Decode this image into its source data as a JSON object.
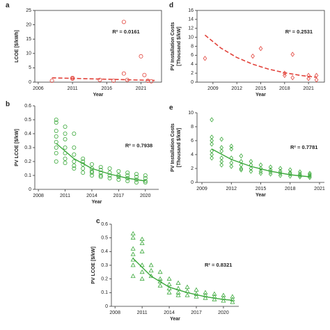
{
  "chart_data": [
    {
      "type": "scatter",
      "panel": "a",
      "ylabel": [
        "LCOE [$/kWh]"
      ],
      "xlabel": "Year",
      "annotation": "R² = 0.0161",
      "marker": "circle",
      "color": "#e2433b",
      "frame": true,
      "xlim": [
        2005.5,
        2024
      ],
      "xticks": [
        2006,
        2011,
        2016,
        2021
      ],
      "ylim": [
        0,
        25
      ],
      "yticks": [
        0,
        5,
        10,
        15,
        20,
        25
      ],
      "series": [
        {
          "x": [
            2008,
            2011,
            2011,
            2015,
            2017,
            2018.5,
            2018.5,
            2019,
            2021,
            2021.5,
            2022,
            2022.5
          ],
          "values": [
            0.5,
            1.5,
            1.2,
            0.8,
            0.5,
            21,
            3,
            0.8,
            9,
            2.5,
            0.5,
            0.3
          ]
        }
      ],
      "trend": {
        "x": [
          2008,
          2013,
          2018,
          2023
        ],
        "values": [
          1.5,
          1.2,
          0.9,
          0.6
        ],
        "dashed": true
      }
    },
    {
      "type": "scatter",
      "panel": "d",
      "ylabel": [
        "PV Installation Costs",
        "[Thousand $/kW]"
      ],
      "xlabel": "Year",
      "annotation": "R² = 0.2531",
      "marker": "diamond",
      "color": "#e2433b",
      "frame": true,
      "xlim": [
        2007,
        2023
      ],
      "xticks": [
        2009,
        2012,
        2015,
        2018,
        2021
      ],
      "ylim": [
        0,
        16
      ],
      "yticks": [
        0,
        2,
        4,
        6,
        8,
        10,
        12,
        14,
        16
      ],
      "series": [
        {
          "x": [
            2008,
            2014,
            2015,
            2018,
            2018,
            2019,
            2019,
            2021,
            2021,
            2022,
            2022
          ],
          "values": [
            5.3,
            5.8,
            7.5,
            2,
            1.5,
            6.2,
            1,
            1.5,
            0.8,
            1.5,
            0.5
          ]
        }
      ],
      "trend": {
        "x": [
          2008,
          2010,
          2012,
          2014,
          2016,
          2018,
          2020,
          2022
        ],
        "values": [
          10.5,
          7.6,
          5.5,
          4.0,
          2.9,
          2.1,
          1.5,
          1.1
        ],
        "dashed": true
      }
    },
    {
      "type": "scatter",
      "panel": "b",
      "ylabel": [
        "PV LCOE [$/kW]"
      ],
      "xlabel": "Year",
      "annotation": "R² = 0.7938",
      "marker": "circle",
      "color": "#3aa83a",
      "frame": false,
      "xlim": [
        2007.6,
        2021.5
      ],
      "xticks": [
        2008,
        2011,
        2014,
        2017,
        2020
      ],
      "ylim": [
        0,
        0.6
      ],
      "yticks": [
        0,
        0.1,
        0.2,
        0.3,
        0.4,
        0.5,
        0.6
      ],
      "series": [
        {
          "x": [
            2010,
            2010,
            2010,
            2010,
            2010,
            2010,
            2010,
            2010,
            2011,
            2011,
            2011,
            2011,
            2011,
            2011,
            2011,
            2012,
            2012,
            2012,
            2012,
            2012,
            2012,
            2013,
            2013,
            2013,
            2013,
            2013,
            2014,
            2014,
            2014,
            2014,
            2014,
            2015,
            2015,
            2015,
            2015,
            2015,
            2016,
            2016,
            2016,
            2016,
            2017,
            2017,
            2017,
            2017,
            2018,
            2018,
            2018,
            2018,
            2019,
            2019,
            2019,
            2019,
            2020,
            2020,
            2020,
            2020
          ],
          "values": [
            0.5,
            0.48,
            0.42,
            0.38,
            0.34,
            0.3,
            0.26,
            0.2,
            0.45,
            0.4,
            0.36,
            0.3,
            0.26,
            0.22,
            0.19,
            0.4,
            0.3,
            0.25,
            0.2,
            0.17,
            0.15,
            0.22,
            0.2,
            0.18,
            0.15,
            0.12,
            0.18,
            0.15,
            0.13,
            0.12,
            0.1,
            0.16,
            0.14,
            0.12,
            0.1,
            0.09,
            0.15,
            0.12,
            0.1,
            0.08,
            0.13,
            0.1,
            0.09,
            0.07,
            0.12,
            0.1,
            0.08,
            0.06,
            0.11,
            0.09,
            0.07,
            0.05,
            0.1,
            0.08,
            0.06,
            0.05
          ]
        }
      ],
      "trend": {
        "x": [
          2010,
          2012,
          2014,
          2016,
          2018,
          2020
        ],
        "values": [
          0.33,
          0.22,
          0.15,
          0.11,
          0.08,
          0.06
        ],
        "dashed": false
      }
    },
    {
      "type": "scatter",
      "panel": "e",
      "ylabel": [
        "PV Installation Costs",
        "[Thousand $/kW]"
      ],
      "xlabel": "Year",
      "annotation": "R² = 0.7781",
      "marker": "diamond",
      "color": "#3aa83a",
      "frame": false,
      "xlim": [
        2008.5,
        2021.5
      ],
      "xticks": [
        2009,
        2012,
        2015,
        2018,
        2021
      ],
      "ylim": [
        0,
        10
      ],
      "yticks": [
        0,
        2,
        4,
        6,
        8,
        10
      ],
      "series": [
        {
          "x": [
            2010,
            2010,
            2010,
            2010,
            2010,
            2010,
            2010,
            2011,
            2011,
            2011,
            2011,
            2011,
            2011,
            2012,
            2012,
            2012,
            2012,
            2012,
            2013,
            2013,
            2013,
            2013,
            2013,
            2014,
            2014,
            2014,
            2014,
            2015,
            2015,
            2015,
            2015,
            2016,
            2016,
            2016,
            2016,
            2017,
            2017,
            2017,
            2017,
            2018,
            2018,
            2018,
            2018,
            2019,
            2019,
            2019,
            2019,
            2020,
            2020,
            2020,
            2020
          ],
          "values": [
            9,
            6.5,
            6,
            5.5,
            4.5,
            4,
            3.5,
            6.2,
            5,
            4.5,
            3.5,
            3,
            2.5,
            5.2,
            4.8,
            3.5,
            2.8,
            2.3,
            3.8,
            3,
            2.5,
            2,
            1.8,
            3,
            2.5,
            2,
            1.6,
            2.5,
            2,
            1.6,
            1.3,
            2.2,
            1.8,
            1.5,
            1.2,
            2,
            1.6,
            1.3,
            1,
            1.8,
            1.4,
            1.2,
            0.9,
            1.5,
            1.2,
            1,
            0.8,
            1.3,
            1.1,
            0.9,
            0.7
          ]
        }
      ],
      "trend": {
        "x": [
          2010,
          2012,
          2014,
          2016,
          2018,
          2020
        ],
        "values": [
          4.8,
          3.3,
          2.3,
          1.6,
          1.1,
          0.8
        ],
        "dashed": false
      }
    },
    {
      "type": "scatter",
      "panel": "c",
      "ylabel": [
        "PV LCOE [$/kW]"
      ],
      "xlabel": "Year",
      "annotation": "R² = 0.8321",
      "marker": "triangle",
      "color": "#3aa83a",
      "frame": false,
      "xlim": [
        2007.6,
        2021.7
      ],
      "xticks": [
        2008,
        2011,
        2014,
        2017,
        2020
      ],
      "ylim": [
        0,
        0.6
      ],
      "yticks": [
        0,
        0.1,
        0.2,
        0.3,
        0.4,
        0.5,
        0.6
      ],
      "series": [
        {
          "x": [
            2010,
            2010,
            2010,
            2010,
            2010,
            2010,
            2010,
            2011,
            2011,
            2011,
            2011,
            2011,
            2011,
            2012,
            2012,
            2012,
            2013,
            2013,
            2013,
            2013,
            2014,
            2014,
            2014,
            2014,
            2015,
            2015,
            2015,
            2015,
            2016,
            2016,
            2016,
            2017,
            2017,
            2017,
            2018,
            2018,
            2018,
            2019,
            2019,
            2019,
            2020,
            2020,
            2020,
            2021,
            2021,
            2021
          ],
          "values": [
            0.53,
            0.5,
            0.42,
            0.38,
            0.34,
            0.3,
            0.22,
            0.49,
            0.46,
            0.4,
            0.3,
            0.25,
            0.2,
            0.3,
            0.26,
            0.22,
            0.25,
            0.2,
            0.18,
            0.15,
            0.2,
            0.16,
            0.13,
            0.1,
            0.17,
            0.13,
            0.1,
            0.08,
            0.14,
            0.11,
            0.08,
            0.12,
            0.09,
            0.07,
            0.1,
            0.08,
            0.06,
            0.09,
            0.07,
            0.05,
            0.08,
            0.06,
            0.04,
            0.07,
            0.05,
            0.03
          ]
        }
      ],
      "trend": {
        "x": [
          2010,
          2012,
          2014,
          2016,
          2018,
          2020,
          2021
        ],
        "values": [
          0.35,
          0.22,
          0.14,
          0.1,
          0.07,
          0.05,
          0.045
        ],
        "dashed": false
      }
    }
  ]
}
